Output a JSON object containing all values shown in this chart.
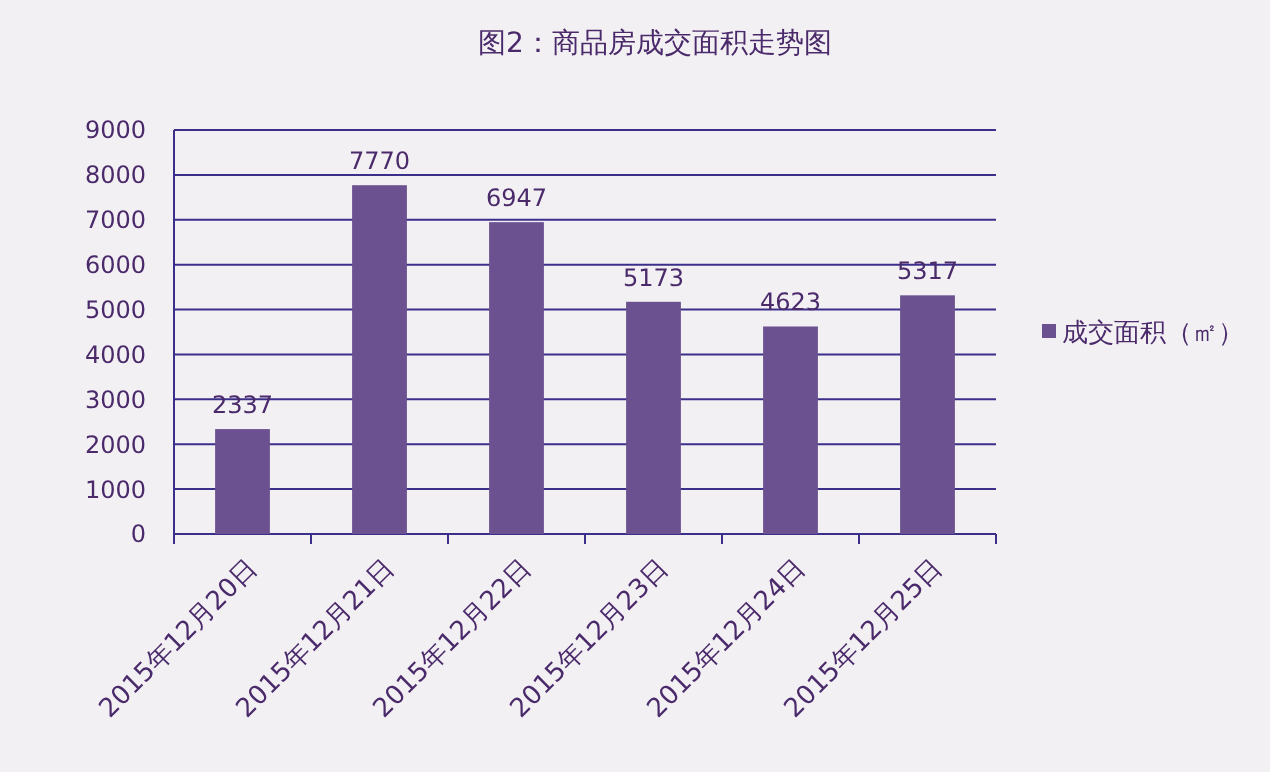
{
  "chart_data": {
    "type": "bar",
    "title": "图2：商品房成交面积走势图",
    "categories": [
      "2015年12月20日",
      "2015年12月21日",
      "2015年12月22日",
      "2015年12月23日",
      "2015年12月24日",
      "2015年12月25日"
    ],
    "series": [
      {
        "name": "成交面积（㎡）",
        "color": "#6b5190",
        "values": [
          2337,
          7770,
          6947,
          5173,
          4623,
          5317
        ]
      }
    ],
    "ylim": [
      0,
      9000
    ],
    "yticks": [
      0,
      1000,
      2000,
      3000,
      4000,
      5000,
      6000,
      7000,
      8000,
      9000
    ],
    "grid": "y",
    "legend": "right",
    "data_labels": true
  }
}
